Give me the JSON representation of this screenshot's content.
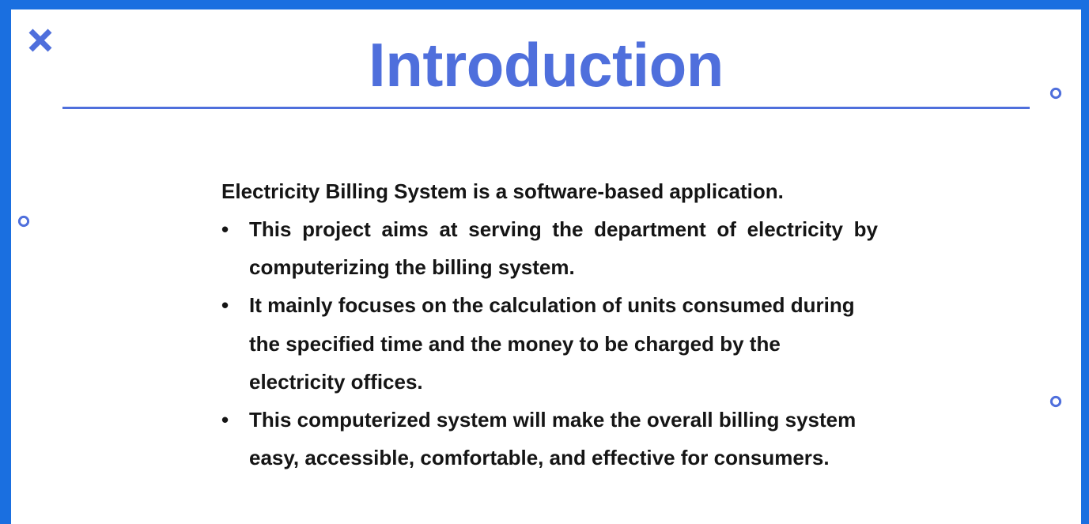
{
  "slide": {
    "title": "Introduction",
    "intro": "Electricity Billing System is a software-based application.",
    "bullet_symbol": "•",
    "bullets": [
      "This project aims at serving the department of electricity by computerizing the billing system.",
      "It mainly focuses on the calculation of units consumed during the specified time and the money to be charged by the electricity offices.",
      "This computerized system will make the overall billing system easy, accessible, comfortable, and effective for consumers."
    ]
  },
  "colors": {
    "frame": "#1a6fe0",
    "accent": "#4f6fdc",
    "text": "#151515",
    "background": "#ffffff"
  },
  "decorations": {
    "icons": [
      "x-mark-icon",
      "ring-icon",
      "ring-icon",
      "ring-icon"
    ]
  }
}
